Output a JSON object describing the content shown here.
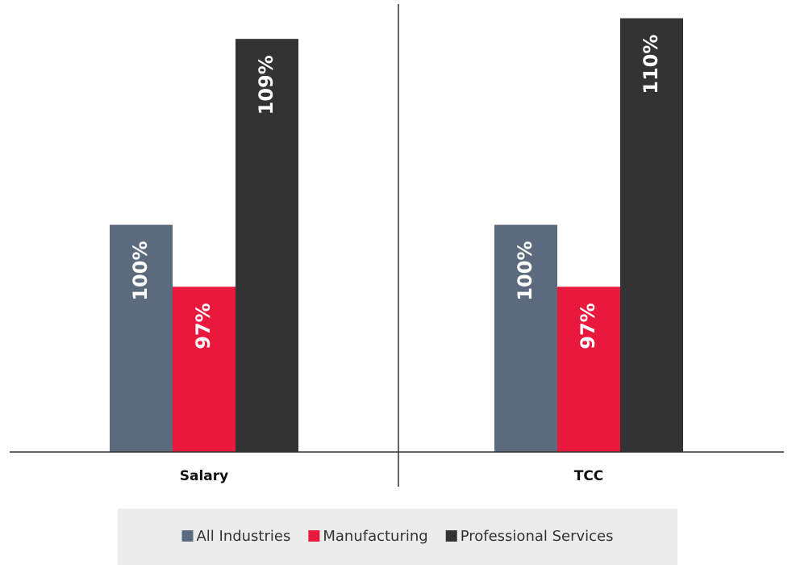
{
  "chart_data": {
    "type": "bar",
    "categories": [
      "Salary",
      "TCC"
    ],
    "series": [
      {
        "name": "All Industries",
        "color": "#5b6b7d",
        "values": [
          100,
          100
        ],
        "value_labels": [
          "100%",
          "100%"
        ]
      },
      {
        "name": "Manufacturing",
        "color": "#e8193c",
        "values": [
          97,
          97
        ],
        "value_labels": [
          "97%",
          "97%"
        ]
      },
      {
        "name": "Professional Services",
        "color": "#333333",
        "values": [
          109,
          110
        ],
        "value_labels": [
          "109%",
          "110%"
        ]
      }
    ],
    "ylim": [
      89,
      111
    ],
    "legend": "bottom"
  }
}
